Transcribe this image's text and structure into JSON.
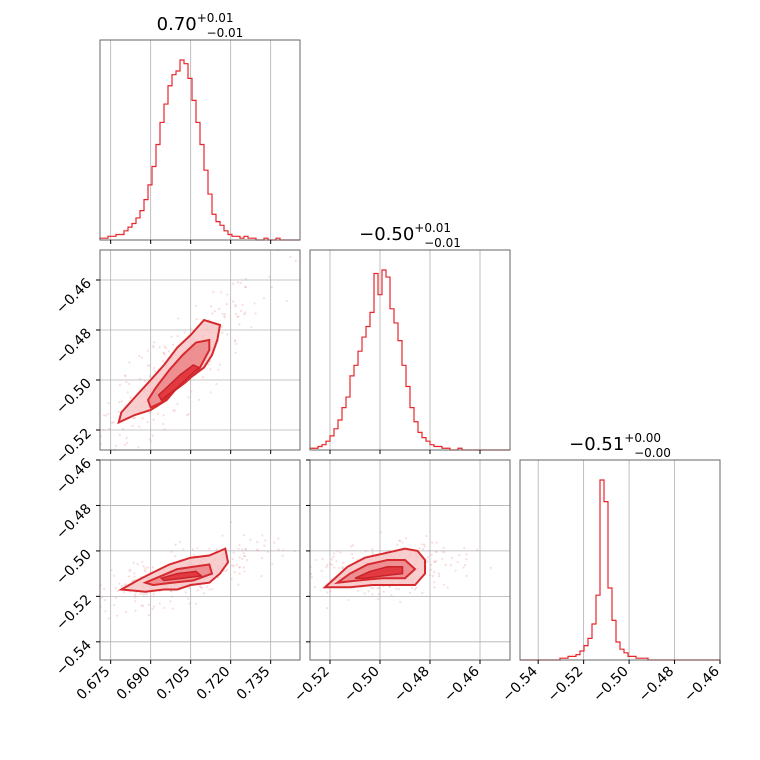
{
  "chart_data": {
    "type": "corner",
    "parameters": [
      {
        "title": {
          "median": "0.70",
          "upper": "+0.01",
          "lower": "−0.01"
        },
        "range": [
          0.671,
          0.746
        ],
        "ticks": [
          0.675,
          0.69,
          0.705,
          0.72,
          0.735
        ],
        "tick_labels": [
          "0.675",
          "0.690",
          "0.705",
          "0.720",
          "0.735"
        ]
      },
      {
        "title": {
          "median": "−0.50",
          "upper": "+0.01",
          "lower": "−0.01"
        },
        "range": [
          -0.528,
          -0.448
        ],
        "ticks": [
          -0.52,
          -0.5,
          -0.48,
          -0.46
        ],
        "tick_labels": [
          "−0.52",
          "−0.50",
          "−0.48",
          "−0.46"
        ]
      },
      {
        "title": {
          "median": "−0.51",
          "upper": "+0.00",
          "lower": "−0.00"
        },
        "range": [
          -0.548,
          -0.46
        ],
        "ticks": [
          -0.54,
          -0.52,
          -0.5,
          -0.48,
          -0.46
        ],
        "tick_labels": [
          "−0.54",
          "−0.52",
          "−0.50",
          "−0.48",
          "−0.46"
        ]
      }
    ],
    "histograms": [
      {
        "param": 0,
        "bin_edges_start": 0.671,
        "bin_width": 0.0015,
        "values": [
          1,
          1,
          2,
          2,
          3,
          3,
          5,
          7,
          9,
          12,
          16,
          22,
          30,
          40,
          52,
          64,
          74,
          84,
          90,
          92,
          98,
          96,
          88,
          76,
          64,
          52,
          38,
          25,
          14,
          10,
          8,
          5,
          3,
          2,
          2,
          1,
          2,
          1,
          1,
          0,
          0,
          1,
          0,
          0,
          1,
          0,
          0,
          0,
          0,
          0
        ]
      },
      {
        "param": 1,
        "bin_edges_start": -0.528,
        "bin_width": 0.0016,
        "values": [
          1,
          1,
          2,
          3,
          5,
          8,
          12,
          17,
          24,
          30,
          42,
          48,
          56,
          64,
          70,
          78,
          100,
          88,
          102,
          98,
          80,
          72,
          62,
          48,
          36,
          24,
          16,
          10,
          7,
          5,
          3,
          2,
          2,
          1,
          1,
          0,
          0,
          1,
          0,
          0,
          0,
          0,
          0,
          0,
          0,
          0,
          0,
          0,
          0,
          0
        ]
      },
      {
        "param": 2,
        "bin_edges_start": -0.548,
        "bin_width": 0.00176,
        "values": [
          0,
          0,
          0,
          0,
          0,
          0,
          0,
          0,
          0,
          0,
          1,
          1,
          2,
          2,
          3,
          5,
          8,
          12,
          20,
          36,
          100,
          88,
          40,
          22,
          10,
          6,
          4,
          2,
          2,
          1,
          1,
          1,
          0,
          0,
          0,
          0,
          0,
          0,
          0,
          0,
          0,
          0,
          0,
          0,
          0,
          0,
          0,
          0,
          0,
          0
        ]
      }
    ],
    "contours_2d": [
      {
        "x_param": 0,
        "y_param": 1,
        "outer": [
          [
            0.678,
            -0.517
          ],
          [
            0.684,
            -0.514
          ],
          [
            0.69,
            -0.512
          ],
          [
            0.696,
            -0.508
          ],
          [
            0.7,
            -0.503
          ],
          [
            0.705,
            -0.499
          ],
          [
            0.71,
            -0.495
          ],
          [
            0.713,
            -0.49
          ],
          [
            0.715,
            -0.484
          ],
          [
            0.716,
            -0.478
          ],
          [
            0.71,
            -0.476
          ],
          [
            0.705,
            -0.482
          ],
          [
            0.7,
            -0.487
          ],
          [
            0.695,
            -0.494
          ],
          [
            0.69,
            -0.5
          ],
          [
            0.684,
            -0.507
          ],
          [
            0.679,
            -0.513
          ]
        ],
        "inner": [
          [
            0.69,
            -0.511
          ],
          [
            0.694,
            -0.509
          ],
          [
            0.698,
            -0.505
          ],
          [
            0.703,
            -0.501
          ],
          [
            0.708,
            -0.496
          ],
          [
            0.712,
            -0.488
          ],
          [
            0.712,
            -0.484
          ],
          [
            0.707,
            -0.485
          ],
          [
            0.702,
            -0.49
          ],
          [
            0.697,
            -0.496
          ],
          [
            0.692,
            -0.503
          ],
          [
            0.689,
            -0.508
          ]
        ],
        "core": [
          [
            0.694,
            -0.508
          ],
          [
            0.699,
            -0.504
          ],
          [
            0.704,
            -0.499
          ],
          [
            0.708,
            -0.495
          ],
          [
            0.706,
            -0.494
          ],
          [
            0.701,
            -0.498
          ],
          [
            0.696,
            -0.503
          ],
          [
            0.693,
            -0.506
          ]
        ]
      },
      {
        "x_param": 0,
        "y_param": 2,
        "outer": [
          [
            0.679,
            -0.517
          ],
          [
            0.685,
            -0.513
          ],
          [
            0.69,
            -0.51
          ],
          [
            0.697,
            -0.506
          ],
          [
            0.705,
            -0.503
          ],
          [
            0.712,
            -0.502
          ],
          [
            0.718,
            -0.499
          ],
          [
            0.719,
            -0.505
          ],
          [
            0.716,
            -0.51
          ],
          [
            0.712,
            -0.514
          ],
          [
            0.705,
            -0.515
          ],
          [
            0.7,
            -0.517
          ],
          [
            0.695,
            -0.517
          ],
          [
            0.688,
            -0.518
          ]
        ],
        "inner": [
          [
            0.688,
            -0.514
          ],
          [
            0.694,
            -0.511
          ],
          [
            0.7,
            -0.508
          ],
          [
            0.706,
            -0.507
          ],
          [
            0.712,
            -0.506
          ],
          [
            0.713,
            -0.51
          ],
          [
            0.706,
            -0.513
          ],
          [
            0.698,
            -0.514
          ],
          [
            0.691,
            -0.515
          ]
        ],
        "core": [
          [
            0.694,
            -0.512
          ],
          [
            0.7,
            -0.51
          ],
          [
            0.707,
            -0.509
          ],
          [
            0.709,
            -0.511
          ],
          [
            0.702,
            -0.512
          ],
          [
            0.695,
            -0.513
          ]
        ]
      },
      {
        "x_param": 1,
        "y_param": 2,
        "outer": [
          [
            -0.522,
            -0.516
          ],
          [
            -0.518,
            -0.512
          ],
          [
            -0.513,
            -0.507
          ],
          [
            -0.506,
            -0.503
          ],
          [
            -0.498,
            -0.501
          ],
          [
            -0.49,
            -0.499
          ],
          [
            -0.485,
            -0.5
          ],
          [
            -0.482,
            -0.504
          ],
          [
            -0.482,
            -0.51
          ],
          [
            -0.486,
            -0.515
          ],
          [
            -0.494,
            -0.515
          ],
          [
            -0.503,
            -0.515
          ],
          [
            -0.512,
            -0.516
          ]
        ],
        "inner": [
          [
            -0.517,
            -0.514
          ],
          [
            -0.512,
            -0.51
          ],
          [
            -0.505,
            -0.506
          ],
          [
            -0.497,
            -0.504
          ],
          [
            -0.49,
            -0.504
          ],
          [
            -0.486,
            -0.508
          ],
          [
            -0.49,
            -0.512
          ],
          [
            -0.499,
            -0.512
          ],
          [
            -0.509,
            -0.513
          ]
        ],
        "core": [
          [
            -0.51,
            -0.512
          ],
          [
            -0.504,
            -0.509
          ],
          [
            -0.497,
            -0.507
          ],
          [
            -0.491,
            -0.507
          ],
          [
            -0.491,
            -0.51
          ],
          [
            -0.499,
            -0.511
          ],
          [
            -0.506,
            -0.512
          ]
        ]
      }
    ],
    "grid": true,
    "color": "#e8262a"
  }
}
